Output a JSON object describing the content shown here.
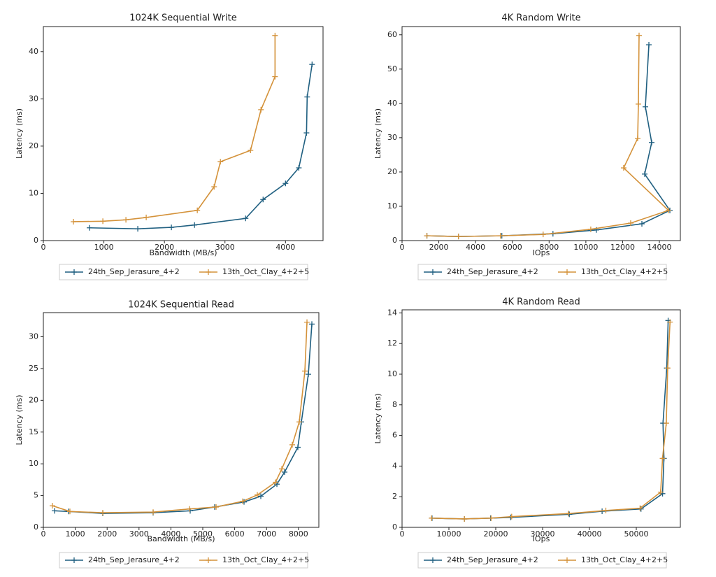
{
  "chart_data": [
    {
      "type": "line",
      "title": "1024K  Sequential Write",
      "x_label": "Bandwidth (MB/s)",
      "y_label": "Latency (ms)",
      "xlim": [
        0,
        4620
      ],
      "ylim": [
        0,
        45.3
      ],
      "xticks": [
        0,
        1000,
        2000,
        3000,
        4000
      ],
      "yticks": [
        0,
        10,
        20,
        30,
        40
      ],
      "legend": "below",
      "grid": false,
      "series": [
        {
          "name": "24th_Sep_Jerasure_4+2",
          "color": "#1f5f80",
          "x": [
            763,
            1560,
            2115,
            2497,
            3341,
            3630,
            4000,
            4220,
            4347,
            4358,
            4439
          ],
          "values": [
            2.7,
            2.5,
            2.8,
            3.3,
            4.7,
            8.7,
            12.1,
            15.4,
            22.8,
            30.4,
            37.3
          ]
        },
        {
          "name": "13th_Oct_Clay_4+2+5",
          "color": "#d4923a",
          "x": [
            497,
            983,
            1364,
            1699,
            2543,
            2821,
            2925,
            3422,
            3595,
            3827,
            3827
          ],
          "values": [
            4.0,
            4.1,
            4.4,
            4.9,
            6.4,
            11.4,
            16.7,
            19.1,
            27.7,
            34.7,
            43.4
          ]
        }
      ]
    },
    {
      "type": "line",
      "title": "4K  Random Write",
      "x_label": "IOps",
      "y_label": "Latency (ms)",
      "xlim": [
        0,
        15140
      ],
      "ylim": [
        0,
        62.4
      ],
      "xticks": [
        0,
        2000,
        4000,
        6000,
        8000,
        10000,
        12000,
        14000
      ],
      "yticks": [
        0,
        10,
        20,
        30,
        40,
        50,
        60
      ],
      "legend": "below",
      "grid": false,
      "series": [
        {
          "name": "24th_Sep_Jerasure_4+2",
          "color": "#1f5f80",
          "x": [
            1352,
            3067,
            5429,
            8210,
            10571,
            13048,
            14571,
            13200,
            13581,
            13238,
            13429
          ],
          "values": [
            1.4,
            1.2,
            1.4,
            2.0,
            3.1,
            4.9,
            8.8,
            19.4,
            28.6,
            39.0,
            57.1
          ]
        },
        {
          "name": "13th_Oct_Clay_4+2+5",
          "color": "#d4923a",
          "x": [
            1352,
            3067,
            5352,
            7676,
            10267,
            12438,
            14495,
            12057,
            12819,
            12857,
            12895
          ],
          "values": [
            1.4,
            1.2,
            1.4,
            1.8,
            3.3,
            5.1,
            8.8,
            21.2,
            29.8,
            39.8,
            59.8
          ]
        }
      ]
    },
    {
      "type": "line",
      "title": "1024K  Sequential Read",
      "x_label": "Bandwidth (MB/s)",
      "y_label": "Latency (ms)",
      "xlim": [
        0,
        8640
      ],
      "ylim": [
        0,
        33.8
      ],
      "xticks": [
        0,
        1000,
        2000,
        3000,
        4000,
        5000,
        6000,
        7000,
        8000
      ],
      "yticks": [
        0,
        5,
        10,
        15,
        20,
        25,
        30
      ],
      "legend": "below",
      "grid": false,
      "series": [
        {
          "name": "24th_Sep_Jerasure_4+2",
          "color": "#1f5f80",
          "x": [
            351,
            789,
            1864,
            3443,
            4605,
            5373,
            6294,
            6820,
            7325,
            7566,
            7982,
            8092,
            8311,
            8421
          ],
          "values": [
            2.6,
            2.5,
            2.2,
            2.3,
            2.6,
            3.2,
            4.0,
            4.9,
            6.8,
            8.7,
            12.6,
            16.6,
            24.1,
            32.0
          ]
        },
        {
          "name": "13th_Oct_Clay_4+2+5",
          "color": "#d4923a",
          "x": [
            285,
            833,
            1864,
            3443,
            4583,
            5417,
            6250,
            6711,
            7281,
            7478,
            7807,
            8026,
            8202,
            8268
          ],
          "values": [
            3.4,
            2.5,
            2.3,
            2.4,
            2.9,
            3.2,
            4.1,
            5.1,
            7.1,
            9.2,
            13.0,
            16.6,
            24.6,
            32.3
          ]
        }
      ]
    },
    {
      "type": "line",
      "title": "4K  Random Read",
      "x_label": "IOps",
      "y_label": "Latency (ms)",
      "xlim": [
        0,
        59400
      ],
      "ylim": [
        0,
        14.2
      ],
      "xticks": [
        0,
        10000,
        20000,
        30000,
        40000,
        50000
      ],
      "yticks": [
        0,
        2,
        4,
        6,
        8,
        10,
        12,
        14
      ],
      "legend": "below",
      "grid": false,
      "series": [
        {
          "name": "24th_Sep_Jerasure_4+2",
          "color": "#1f5f80",
          "x": [
            6400,
            13300,
            18900,
            23200,
            35700,
            42700,
            51000,
            55600,
            55900,
            55700,
            56500,
            56800
          ],
          "values": [
            0.6,
            0.55,
            0.6,
            0.65,
            0.85,
            1.05,
            1.2,
            2.2,
            4.5,
            6.8,
            10.4,
            13.5
          ]
        },
        {
          "name": "13th_Oct_Clay_4+2+5",
          "color": "#d4923a",
          "x": [
            6300,
            13300,
            19000,
            23400,
            35500,
            43500,
            50800,
            55200,
            55600,
            56400,
            56700,
            57200
          ],
          "values": [
            0.6,
            0.55,
            0.6,
            0.7,
            0.9,
            1.1,
            1.25,
            2.3,
            4.5,
            6.8,
            10.4,
            13.4
          ]
        }
      ]
    }
  ]
}
